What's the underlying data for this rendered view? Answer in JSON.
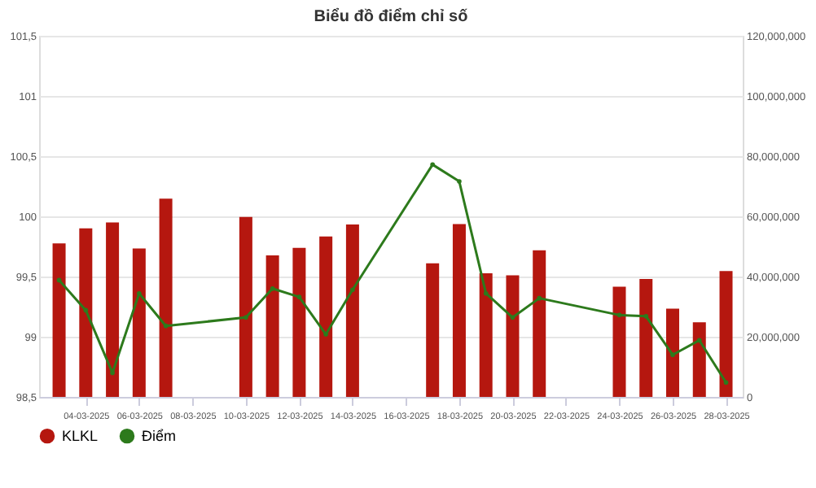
{
  "chart_data": {
    "type": "bar",
    "title": "Biểu đồ điểm chỉ số",
    "x": [
      "2025-03-03",
      "2025-03-04",
      "2025-03-05",
      "2025-03-06",
      "2025-03-07",
      "2025-03-10",
      "2025-03-11",
      "2025-03-12",
      "2025-03-13",
      "2025-03-14",
      "2025-03-17",
      "2025-03-18",
      "2025-03-19",
      "2025-03-20",
      "2025-03-21",
      "2025-03-24",
      "2025-03-25",
      "2025-03-26",
      "2025-03-27",
      "2025-03-28"
    ],
    "series": [
      {
        "name": "KLKL",
        "axis": "y2",
        "color": "#b5170f",
        "values": [
          51000000,
          56000000,
          58000000,
          49300000,
          65900000,
          59800000,
          47000000,
          49500000,
          53300000,
          57300000,
          44400000,
          57400000,
          41100000,
          40400000,
          48700000,
          36600000,
          39200000,
          29300000,
          24800000,
          41800000
        ]
      },
      {
        "name": "Điểm",
        "type": "line",
        "color": "#2d7a1c",
        "values": [
          99.47,
          99.22,
          98.7,
          99.36,
          99.09,
          99.16,
          99.4,
          99.33,
          99.02,
          99.39,
          100.43,
          100.29,
          99.36,
          99.16,
          99.32,
          99.18,
          99.17,
          98.85,
          98.97,
          98.62
        ]
      }
    ],
    "xlim": [
      "2025-03-02T06:00",
      "2025-03-28T15:00"
    ],
    "xticks": [
      {
        "value": "2025-03-04",
        "label": "04-03-2025"
      },
      {
        "value": "2025-03-06",
        "label": "06-03-2025"
      },
      {
        "value": "2025-03-08",
        "label": "08-03-2025"
      },
      {
        "value": "2025-03-10",
        "label": "10-03-2025"
      },
      {
        "value": "2025-03-12",
        "label": "12-03-2025"
      },
      {
        "value": "2025-03-14",
        "label": "14-03-2025"
      },
      {
        "value": "2025-03-16",
        "label": "16-03-2025"
      },
      {
        "value": "2025-03-18",
        "label": "18-03-2025"
      },
      {
        "value": "2025-03-20",
        "label": "20-03-2025"
      },
      {
        "value": "2025-03-22",
        "label": "22-03-2025"
      },
      {
        "value": "2025-03-24",
        "label": "24-03-2025"
      },
      {
        "value": "2025-03-26",
        "label": "26-03-2025"
      },
      {
        "value": "2025-03-28",
        "label": "28-03-2025"
      }
    ],
    "ylim": [
      98.5,
      101.5
    ],
    "yticks": [
      {
        "value": 98.5,
        "label": "98,5"
      },
      {
        "value": 99,
        "label": "99"
      },
      {
        "value": 99.5,
        "label": "99,5"
      },
      {
        "value": 100,
        "label": "100"
      },
      {
        "value": 100.5,
        "label": "100,5"
      },
      {
        "value": 101,
        "label": "101"
      },
      {
        "value": 101.5,
        "label": "101,5"
      }
    ],
    "y2lim": [
      0,
      120000000
    ],
    "y2ticks": [
      {
        "value": 0,
        "label": "0"
      },
      {
        "value": 20000000,
        "label": "20,000,000"
      },
      {
        "value": 40000000,
        "label": "40,000,000"
      },
      {
        "value": 60000000,
        "label": "60,000,000"
      },
      {
        "value": 80000000,
        "label": "80,000,000"
      },
      {
        "value": 100000000,
        "label": "100,000,000"
      },
      {
        "value": 120000000,
        "label": "120,000,000"
      }
    ],
    "grid": "y",
    "legend": "bottom"
  }
}
